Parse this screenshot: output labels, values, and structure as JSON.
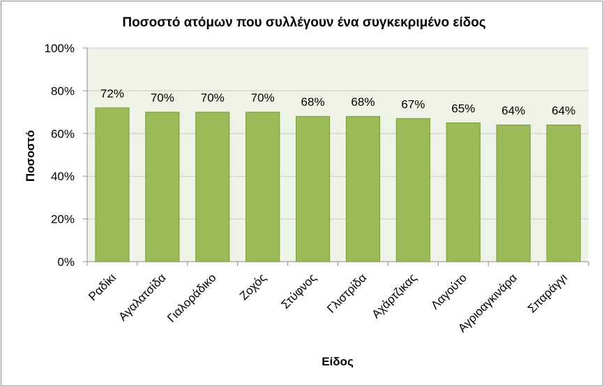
{
  "chart_data": {
    "type": "bar",
    "title": "Ποσοστό ατόμων που συλλέγουν ένα συγκεκριμένο είδος",
    "xlabel": "Είδος",
    "ylabel": "Ποσοστό",
    "categories": [
      "Ραδίκι",
      "Αγαλατσίδα",
      "Γιαλοράδικο",
      "Ζοχός",
      "Στύφνος",
      "Γλιστρίδα",
      "Αχάρτζικας",
      "Λαγούτο",
      "Αγριοαγκινάρα",
      "Σπαράγγι"
    ],
    "values": [
      72,
      70,
      70,
      70,
      68,
      68,
      67,
      65,
      64,
      64
    ],
    "data_labels": [
      "72%",
      "70%",
      "70%",
      "70%",
      "68%",
      "68%",
      "67%",
      "65%",
      "64%",
      "64%"
    ],
    "ylim": [
      0,
      100
    ],
    "yticks": [
      0,
      20,
      40,
      60,
      80,
      100
    ],
    "ytick_labels": [
      "0%",
      "20%",
      "40%",
      "60%",
      "80%",
      "100%"
    ],
    "grid": true,
    "legend": "none",
    "colors": {
      "bar_fill": "#9bbb59",
      "bar_stroke": "#7a9a3c",
      "plot_background": "#eff3e7",
      "gridline": "#c9ccc3",
      "axis": "#8c8c8c"
    }
  }
}
